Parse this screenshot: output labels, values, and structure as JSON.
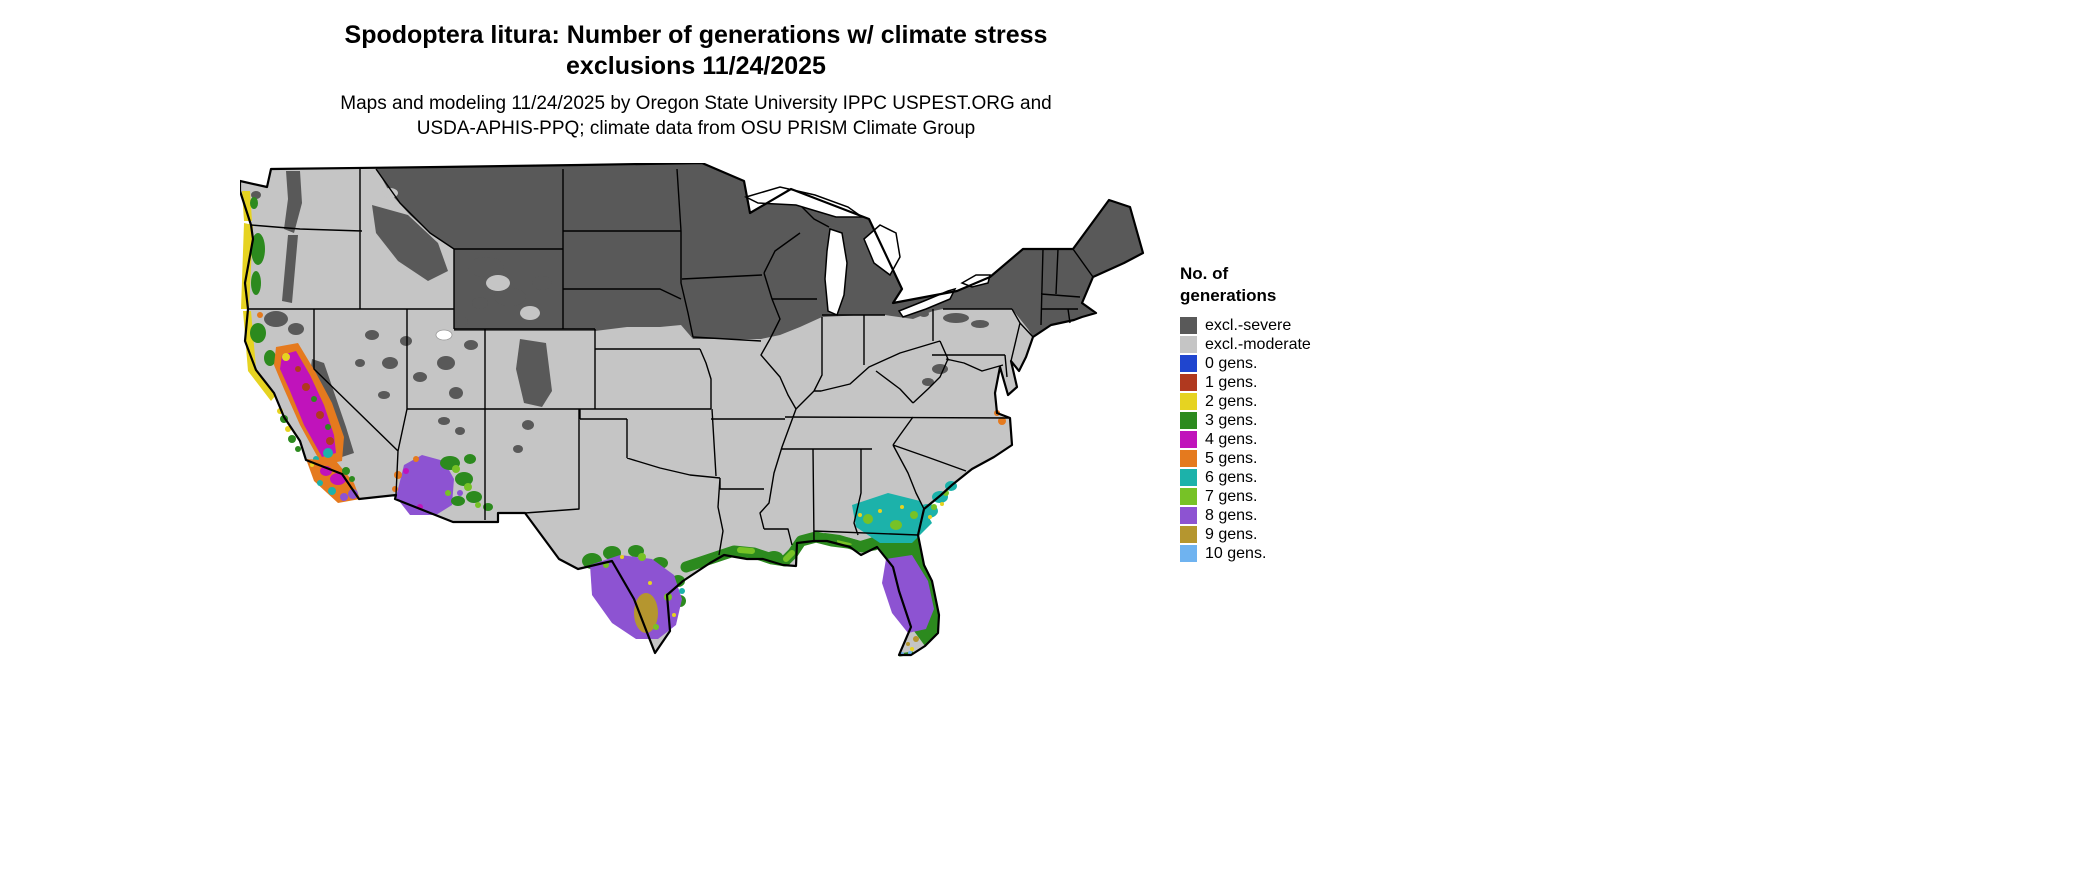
{
  "title": {
    "line1": "Spodoptera litura: Number of generations w/ climate stress",
    "line2": "exclusions 11/24/2025"
  },
  "subtitle": {
    "line1": "Maps and modeling 11/24/2025 by Oregon State University IPPC USPEST.ORG and",
    "line2": "USDA-APHIS-PPQ; climate data from OSU PRISM Climate Group"
  },
  "legend": {
    "title_line1": "No. of",
    "title_line2": "generations",
    "entries": [
      {
        "id": "severe",
        "label": "excl.-severe",
        "color": "#595959"
      },
      {
        "id": "moderate",
        "label": "excl.-moderate",
        "color": "#c5c5c5"
      },
      {
        "id": "g0",
        "label": "0 gens.",
        "color": "#1f45cf"
      },
      {
        "id": "g1",
        "label": "1 gens.",
        "color": "#b0391f"
      },
      {
        "id": "g2",
        "label": "2 gens.",
        "color": "#e6d321"
      },
      {
        "id": "g3",
        "label": "3 gens.",
        "color": "#2c8a1e"
      },
      {
        "id": "g4",
        "label": "4 gens.",
        "color": "#c013bb"
      },
      {
        "id": "g5",
        "label": "5 gens.",
        "color": "#e57a1e"
      },
      {
        "id": "g6",
        "label": "6 gens.",
        "color": "#1cb2aa"
      },
      {
        "id": "g7",
        "label": "7 gens.",
        "color": "#77c226"
      },
      {
        "id": "g8",
        "label": "8 gens.",
        "color": "#8d53d2"
      },
      {
        "id": "g9",
        "label": "9 gens.",
        "color": "#b5962f"
      },
      {
        "id": "g10",
        "label": "10 gens.",
        "color": "#6fb3f0"
      }
    ]
  },
  "map": {
    "region": "Contiguous United States with state boundaries",
    "water_color": "#ffffff",
    "zone_summary": [
      "Northern tier states, Great Lakes region, New England and western mountain ranges: excl.-severe (dark gray)",
      "Central plains, interior South and Mid-Atlantic: excl.-moderate (light gray)",
      "Pacific coast strip of Oregon and northern California: 2-3 generations",
      "California Central Valley: 4-5 generations with 1 and 6 generation patches",
      "Southwestern Arizona and southern California: 8 generations with 3 and 7 generation mottling",
      "Southern Texas: 8 generations with 9 generation core",
      "Gulf Coast strip: 3 generations",
      "Northern Florida and Georgia/South Carolina coast: 6 generations",
      "Central Florida peninsula: 8 generations; Keys: 9-10 generations"
    ]
  }
}
